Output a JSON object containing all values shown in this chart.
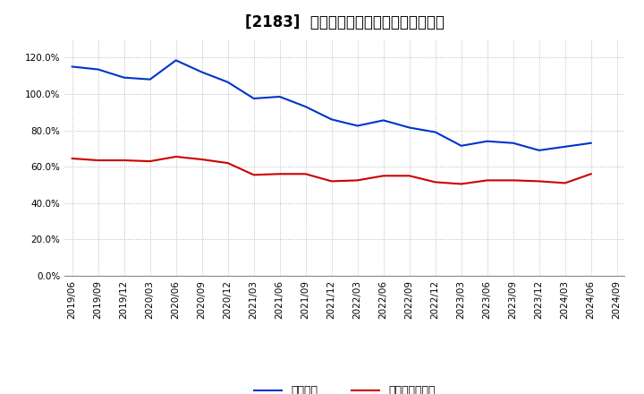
{
  "title": "[2183]  固定比率、固定長期適合率の推移",
  "x_labels": [
    "2019/06",
    "2019/09",
    "2019/12",
    "2020/03",
    "2020/06",
    "2020/09",
    "2020/12",
    "2021/03",
    "2021/06",
    "2021/09",
    "2021/12",
    "2022/03",
    "2022/06",
    "2022/09",
    "2022/12",
    "2023/03",
    "2023/06",
    "2023/09",
    "2023/12",
    "2024/03",
    "2024/06",
    "2024/09"
  ],
  "fixed_ratio": [
    115.0,
    113.5,
    109.0,
    108.0,
    118.5,
    112.0,
    106.5,
    97.5,
    98.5,
    93.0,
    86.0,
    82.5,
    85.5,
    81.5,
    79.0,
    71.5,
    74.0,
    73.0,
    69.0,
    71.0,
    73.0,
    null
  ],
  "fixed_long_ratio": [
    64.5,
    63.5,
    63.5,
    63.0,
    65.5,
    64.0,
    62.0,
    55.5,
    56.0,
    56.0,
    52.0,
    52.5,
    55.0,
    55.0,
    51.5,
    50.5,
    52.5,
    52.5,
    52.0,
    51.0,
    56.0,
    null
  ],
  "line1_color": "#0033cc",
  "line2_color": "#cc0000",
  "line1_label": "固定比率",
  "line2_label": "固定長期適合率",
  "ylim": [
    0,
    130
  ],
  "yticks": [
    0,
    20,
    40,
    60,
    80,
    100,
    120
  ],
  "background_color": "#ffffff",
  "grid_color": "#aaaaaa",
  "title_fontsize": 12,
  "tick_fontsize": 7.5,
  "legend_fontsize": 9
}
